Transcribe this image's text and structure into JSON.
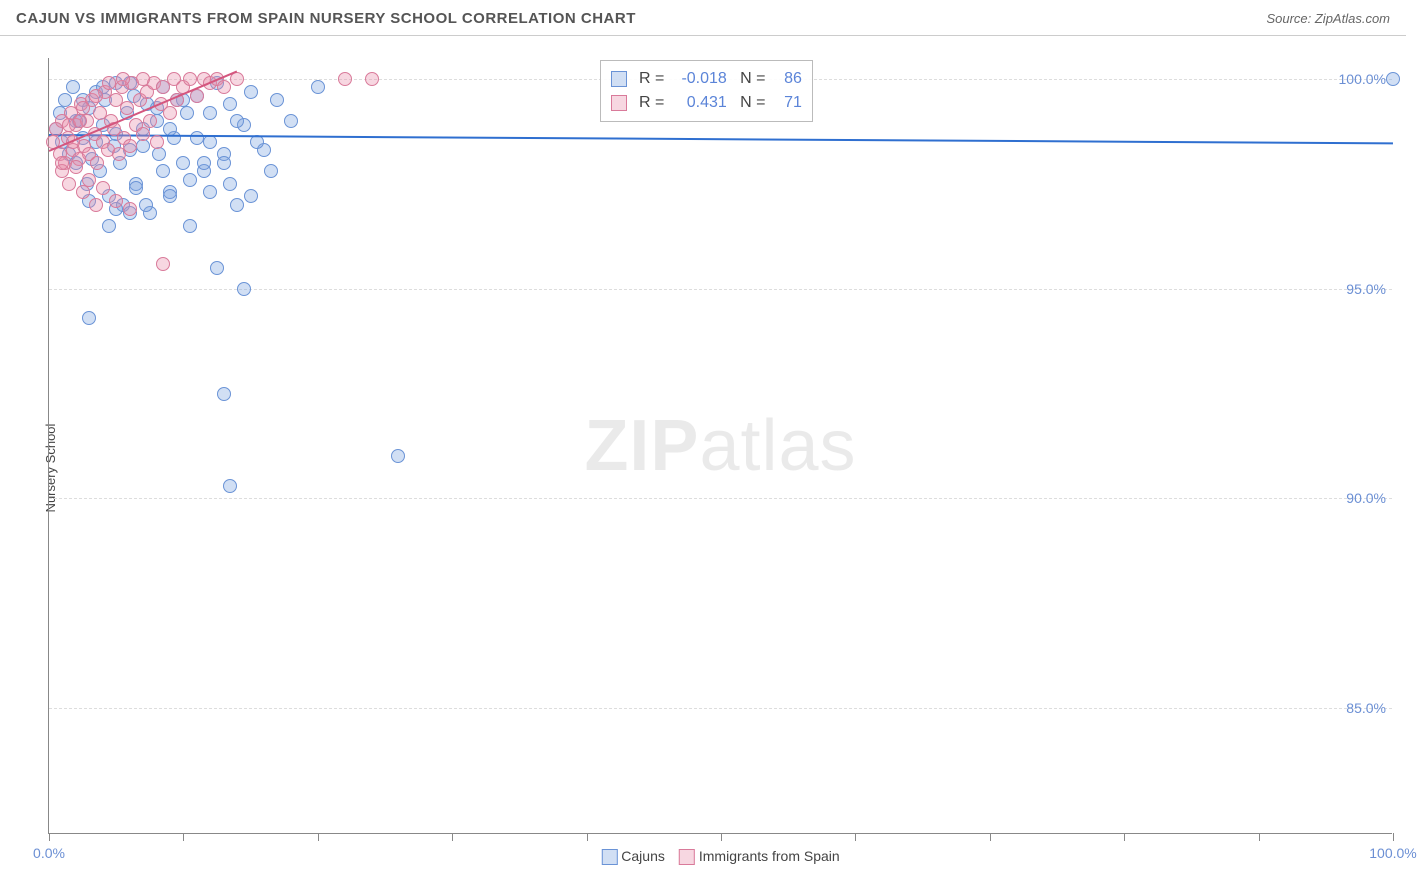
{
  "title": "CAJUN VS IMMIGRANTS FROM SPAIN NURSERY SCHOOL CORRELATION CHART",
  "source": "Source: ZipAtlas.com",
  "ylabel": "Nursery School",
  "watermark_bold": "ZIP",
  "watermark_rest": "atlas",
  "chart": {
    "type": "scatter",
    "xlim": [
      0,
      100
    ],
    "ylim": [
      82,
      100.5
    ],
    "x_ticks": [
      0,
      10,
      20,
      30,
      40,
      50,
      60,
      70,
      80,
      90,
      100
    ],
    "x_tick_labels": {
      "0": "0.0%",
      "100": "100.0%"
    },
    "y_gridlines": [
      85,
      90,
      95,
      100
    ],
    "y_tick_labels": {
      "85": "85.0%",
      "90": "90.0%",
      "95": "95.0%",
      "100": "100.0%"
    },
    "background_color": "#ffffff",
    "grid_color": "#dddddd",
    "axis_color": "#888888",
    "series": [
      {
        "name": "Cajuns",
        "marker_color_fill": "rgba(123,164,224,0.35)",
        "marker_color_stroke": "#6a93d6",
        "trend_color": "#2f6fd0",
        "R": "-0.018",
        "N": "86",
        "trend": {
          "x1": 0,
          "y1": 98.7,
          "x2": 100,
          "y2": 98.5
        },
        "points": [
          [
            0.5,
            98.8
          ],
          [
            0.8,
            99.2
          ],
          [
            1.0,
            98.5
          ],
          [
            1.2,
            99.5
          ],
          [
            1.5,
            98.2
          ],
          [
            1.8,
            99.8
          ],
          [
            2.0,
            98.0
          ],
          [
            2.2,
            99.0
          ],
          [
            2.5,
            98.6
          ],
          [
            2.8,
            97.5
          ],
          [
            3.0,
            99.3
          ],
          [
            3.2,
            98.1
          ],
          [
            3.5,
            99.7
          ],
          [
            3.8,
            97.8
          ],
          [
            4.0,
            98.9
          ],
          [
            4.2,
            99.5
          ],
          [
            4.5,
            97.2
          ],
          [
            4.8,
            98.4
          ],
          [
            5.0,
            99.9
          ],
          [
            5.3,
            98.0
          ],
          [
            5.5,
            97.0
          ],
          [
            5.8,
            99.2
          ],
          [
            6.0,
            98.3
          ],
          [
            6.3,
            99.6
          ],
          [
            6.5,
            97.5
          ],
          [
            7.0,
            98.8
          ],
          [
            7.3,
            99.4
          ],
          [
            7.5,
            96.8
          ],
          [
            8.0,
            99.0
          ],
          [
            8.2,
            98.2
          ],
          [
            8.5,
            99.8
          ],
          [
            9.0,
            97.3
          ],
          [
            9.3,
            98.6
          ],
          [
            9.5,
            99.5
          ],
          [
            10.0,
            98.0
          ],
          [
            10.3,
            99.2
          ],
          [
            10.5,
            96.5
          ],
          [
            11.0,
            99.6
          ],
          [
            11.5,
            97.8
          ],
          [
            12.0,
            98.5
          ],
          [
            12.5,
            99.9
          ],
          [
            13.0,
            98.2
          ],
          [
            13.5,
            99.4
          ],
          [
            14.0,
            97.0
          ],
          [
            14.5,
            98.9
          ],
          [
            15.0,
            99.7
          ],
          [
            16.0,
            98.3
          ],
          [
            17.0,
            99.5
          ],
          [
            18.0,
            99.0
          ],
          [
            20.0,
            99.8
          ],
          [
            3.0,
            94.3
          ],
          [
            6.5,
            97.4
          ],
          [
            7.2,
            97.0
          ],
          [
            8.5,
            97.8
          ],
          [
            9.0,
            97.2
          ],
          [
            10.5,
            97.6
          ],
          [
            11.5,
            98.0
          ],
          [
            12.0,
            97.3
          ],
          [
            13.5,
            97.5
          ],
          [
            15.0,
            97.2
          ],
          [
            4.5,
            96.5
          ],
          [
            5.0,
            96.9
          ],
          [
            3.0,
            97.1
          ],
          [
            6.0,
            96.8
          ],
          [
            12.5,
            95.5
          ],
          [
            14.5,
            95.0
          ],
          [
            13.0,
            92.5
          ],
          [
            13.5,
            90.3
          ],
          [
            26.0,
            91.0
          ],
          [
            100.0,
            100.0
          ],
          [
            2.0,
            99.0
          ],
          [
            2.5,
            99.5
          ],
          [
            3.5,
            98.5
          ],
          [
            4.0,
            99.8
          ],
          [
            5.0,
            98.7
          ],
          [
            6.0,
            99.9
          ],
          [
            7.0,
            98.4
          ],
          [
            8.0,
            99.3
          ],
          [
            9.0,
            98.8
          ],
          [
            10.0,
            99.5
          ],
          [
            11.0,
            98.6
          ],
          [
            12.0,
            99.2
          ],
          [
            13.0,
            98.0
          ],
          [
            14.0,
            99.0
          ],
          [
            15.5,
            98.5
          ],
          [
            16.5,
            97.8
          ]
        ]
      },
      {
        "name": "Immigrants from Spain",
        "marker_color_fill": "rgba(232,140,168,0.35)",
        "marker_color_stroke": "#d97a9a",
        "trend_color": "#d4567e",
        "R": "0.431",
        "N": "71",
        "trend": {
          "x1": 0,
          "y1": 98.3,
          "x2": 14,
          "y2": 100.2
        },
        "points": [
          [
            0.3,
            98.5
          ],
          [
            0.5,
            98.8
          ],
          [
            0.8,
            98.2
          ],
          [
            1.0,
            99.0
          ],
          [
            1.2,
            98.0
          ],
          [
            1.4,
            98.6
          ],
          [
            1.6,
            99.2
          ],
          [
            1.8,
            98.3
          ],
          [
            2.0,
            98.9
          ],
          [
            2.2,
            98.1
          ],
          [
            2.4,
            99.4
          ],
          [
            2.6,
            98.4
          ],
          [
            2.8,
            99.0
          ],
          [
            3.0,
            98.2
          ],
          [
            3.2,
            99.5
          ],
          [
            3.4,
            98.7
          ],
          [
            3.6,
            98.0
          ],
          [
            3.8,
            99.2
          ],
          [
            4.0,
            98.5
          ],
          [
            4.2,
            99.7
          ],
          [
            4.4,
            98.3
          ],
          [
            4.6,
            99.0
          ],
          [
            4.8,
            98.8
          ],
          [
            5.0,
            99.5
          ],
          [
            5.2,
            98.2
          ],
          [
            5.4,
            99.8
          ],
          [
            5.6,
            98.6
          ],
          [
            5.8,
            99.3
          ],
          [
            6.0,
            98.4
          ],
          [
            6.2,
            99.9
          ],
          [
            6.5,
            98.9
          ],
          [
            6.8,
            99.5
          ],
          [
            7.0,
            98.7
          ],
          [
            7.3,
            99.7
          ],
          [
            7.5,
            99.0
          ],
          [
            7.8,
            99.9
          ],
          [
            8.0,
            98.5
          ],
          [
            8.3,
            99.4
          ],
          [
            8.5,
            99.8
          ],
          [
            9.0,
            99.2
          ],
          [
            9.3,
            100.0
          ],
          [
            9.5,
            99.5
          ],
          [
            10.0,
            99.8
          ],
          [
            10.5,
            100.0
          ],
          [
            11.0,
            99.6
          ],
          [
            11.5,
            100.0
          ],
          [
            12.0,
            99.9
          ],
          [
            12.5,
            100.0
          ],
          [
            13.0,
            99.8
          ],
          [
            14.0,
            100.0
          ],
          [
            1.0,
            97.8
          ],
          [
            1.5,
            97.5
          ],
          [
            2.0,
            97.9
          ],
          [
            2.5,
            97.3
          ],
          [
            3.0,
            97.6
          ],
          [
            3.5,
            97.0
          ],
          [
            4.0,
            97.4
          ],
          [
            5.0,
            97.1
          ],
          [
            6.0,
            96.9
          ],
          [
            1.5,
            98.9
          ],
          [
            2.5,
            99.3
          ],
          [
            3.5,
            99.6
          ],
          [
            4.5,
            99.9
          ],
          [
            5.5,
            100.0
          ],
          [
            7.0,
            100.0
          ],
          [
            8.5,
            95.6
          ],
          [
            22.0,
            100.0
          ],
          [
            24.0,
            100.0
          ],
          [
            1.0,
            98.0
          ],
          [
            1.8,
            98.5
          ],
          [
            2.3,
            99.0
          ]
        ]
      }
    ]
  },
  "legend": {
    "series1_label": "Cajuns",
    "series2_label": "Immigrants from Spain",
    "stats_box": {
      "r_label": "R =",
      "n_label": "N ="
    }
  }
}
